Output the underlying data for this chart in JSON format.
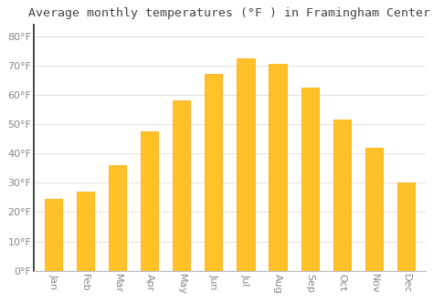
{
  "title": "Average monthly temperatures (°F ) in Framingham Center",
  "months": [
    "Jan",
    "Feb",
    "Mar",
    "Apr",
    "May",
    "Jun",
    "Jul",
    "Aug",
    "Sep",
    "Oct",
    "Nov",
    "Dec"
  ],
  "values": [
    24.5,
    27,
    36,
    47.5,
    58,
    67,
    72.5,
    70.5,
    62.5,
    51.5,
    42,
    30
  ],
  "bar_color": "#FFC125",
  "bar_edge_color": "#FFA500",
  "background_color": "#FFFFFF",
  "grid_color": "#DDDDDD",
  "ylim": [
    0,
    84
  ],
  "yticks": [
    0,
    10,
    20,
    30,
    40,
    50,
    60,
    70,
    80
  ],
  "ytick_labels": [
    "0°F",
    "10°F",
    "20°F",
    "30°F",
    "40°F",
    "50°F",
    "60°F",
    "70°F",
    "80°F"
  ],
  "title_fontsize": 9.5,
  "tick_fontsize": 8,
  "title_color": "#444444",
  "tick_color": "#888888",
  "left_spine_color": "#222222",
  "bottom_spine_color": "#BBBBBB",
  "bar_width": 0.55
}
